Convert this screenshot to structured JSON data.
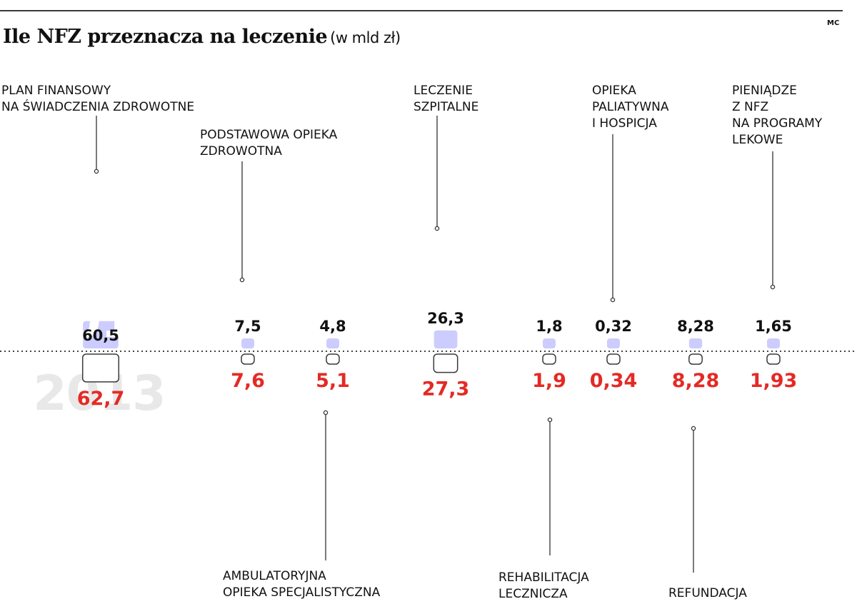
{
  "title": "Ile NFZ przeznacza na leczenie",
  "unit": "(w mld zł)",
  "credit": "MC",
  "colors": {
    "bar_2012": "#ccccff",
    "bar_2013_fill": "#ffffff",
    "bar_2013_stroke": "#3a3a3a",
    "value_2013": "#e42a25",
    "year_2012": "#ffffff",
    "year_2013": "#e8e8e8"
  },
  "chart_data": {
    "type": "bar",
    "title": "Ile NFZ przeznacza na leczenie",
    "subtitle": "(w mld zł)",
    "categories": [
      "PLAN FINANSOWY\nNA ŚWIADCZENIA ZDROWOTNE",
      "PODSTAWOWA OPIEKA\nZDROWOTNA",
      "AMBULATORYJNA\nOPIEKA SPECJALISTYCZNA",
      "LECZENIE\nSZPITALNE",
      "REHABILITACJA\nLECZNICZA",
      "OPIEKA\nPALIATYWNA\nI HOSPICJA",
      "REFUNDACJA",
      "PIENIĄDZE\nZ NFZ\nNA PROGRAMY\nLEKOWE"
    ],
    "series": [
      {
        "name": "2012",
        "values": [
          60.5,
          7.5,
          4.8,
          26.3,
          1.8,
          0.32,
          8.28,
          1.65
        ],
        "labels": [
          "60,5",
          "7,5",
          "4,8",
          "26,3",
          "1,8",
          "0,32",
          "8,28",
          "1,65"
        ]
      },
      {
        "name": "2013",
        "values": [
          62.7,
          7.6,
          5.1,
          27.3,
          1.9,
          0.34,
          8.28,
          1.93
        ],
        "labels": [
          "62,7",
          "7,6",
          "5,1",
          "27,3",
          "1,9",
          "0,34",
          "8,28",
          "1,93"
        ]
      }
    ]
  }
}
